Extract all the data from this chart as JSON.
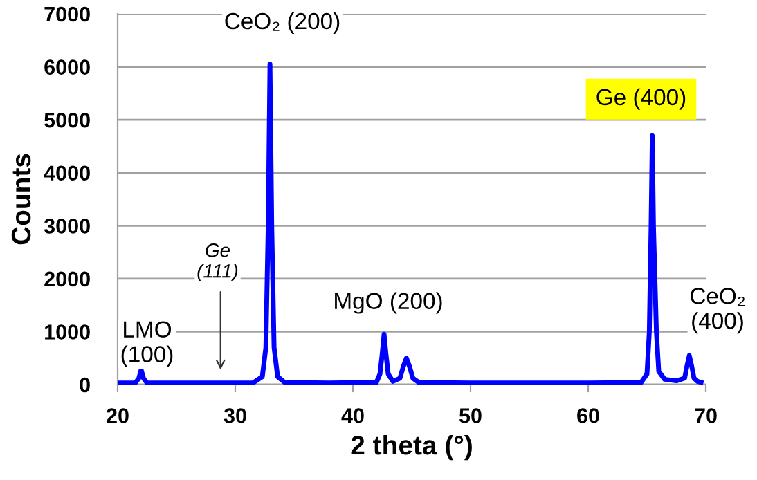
{
  "chart_data": {
    "type": "line",
    "xlabel": "2 theta (°)",
    "ylabel": "Counts",
    "xlim": [
      20,
      70
    ],
    "ylim": [
      0,
      7000
    ],
    "xticks": [
      20,
      30,
      40,
      50,
      60,
      70
    ],
    "yticks": [
      0,
      1000,
      2000,
      3000,
      4000,
      5000,
      6000,
      7000
    ],
    "grid": "y",
    "marker": "none",
    "line_style": "solid",
    "series": [
      {
        "color": "#0000ff",
        "x": [
          20.0,
          21.5,
          21.8,
          22.0,
          22.2,
          22.5,
          25,
          28,
          31.5,
          32.3,
          32.6,
          32.8,
          32.95,
          33.1,
          33.3,
          33.6,
          34.2,
          38,
          42.0,
          42.3,
          42.5,
          42.65,
          42.8,
          43.0,
          43.4,
          44.0,
          44.3,
          44.55,
          44.8,
          45.1,
          45.6,
          50,
          60,
          64.5,
          65.0,
          65.2,
          65.35,
          65.45,
          65.55,
          65.8,
          66.0,
          66.5,
          67.5,
          68.2,
          68.4,
          68.6,
          68.8,
          69.0,
          69.3,
          69.6
        ],
        "values": [
          30,
          30,
          120,
          280,
          120,
          30,
          30,
          30,
          30,
          150,
          700,
          3000,
          6050,
          3000,
          700,
          150,
          40,
          30,
          40,
          200,
          600,
          950,
          600,
          200,
          60,
          120,
          350,
          500,
          350,
          120,
          40,
          30,
          30,
          40,
          200,
          1000,
          3000,
          4700,
          3000,
          1000,
          250,
          100,
          70,
          120,
          350,
          550,
          350,
          120,
          60,
          40
        ]
      }
    ],
    "annotations": [
      "CeO₂ (200)",
      "LMO\n(100)",
      "Ge\n(111)",
      "MgO (200)",
      "Ge (400)",
      "CeO₂\n(400)"
    ]
  }
}
